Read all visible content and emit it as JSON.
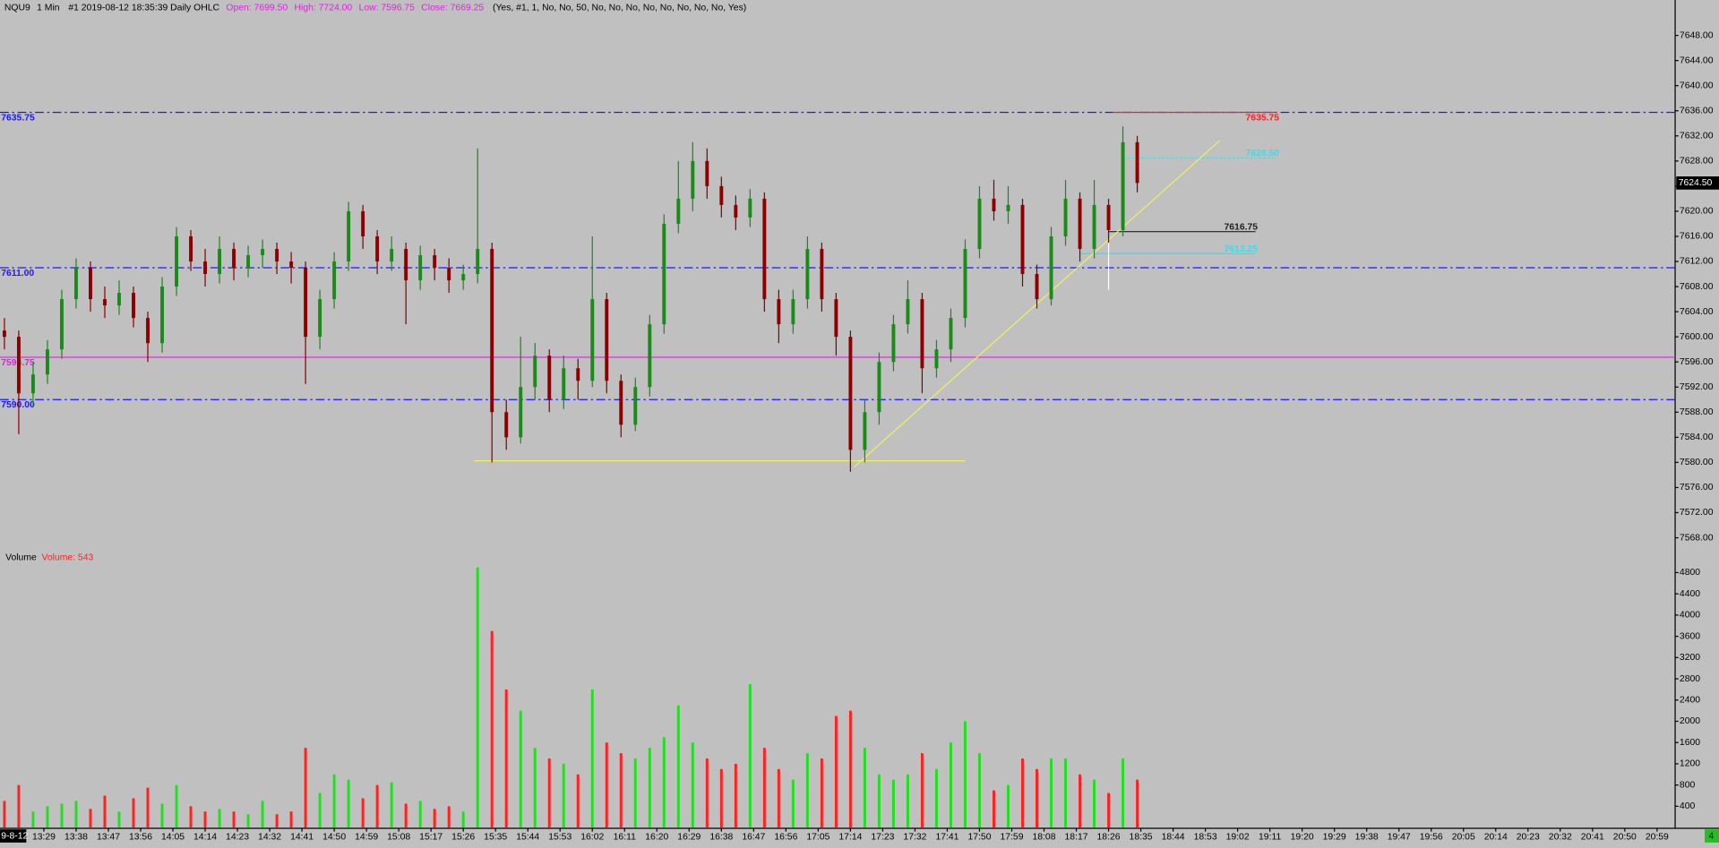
{
  "header": {
    "symbol": "NQU9",
    "interval": "1 Min",
    "info": "#1 2019-08-12 18:35:39 Daily OHLC",
    "ohlc": [
      "Open: 7699.50",
      "High: 7724.00",
      "Low: 7596.75",
      "Close: 7669.25"
    ],
    "params": "(Yes, #1, 1, No, No, 50, No, No, No, No, No, No, No, No, Yes)",
    "date_label": "9-8-12",
    "status": "4"
  },
  "chart_data": [
    {
      "type": "candlestick",
      "x": [
        "13:18",
        "13:22",
        "13:26",
        "13:30",
        "13:34",
        "13:38",
        "13:42",
        "13:46",
        "13:50",
        "13:54",
        "13:58",
        "14:02",
        "14:06",
        "14:10",
        "14:14",
        "14:18",
        "14:22",
        "14:26",
        "14:30",
        "14:34",
        "14:38",
        "14:42",
        "14:46",
        "14:50",
        "14:54",
        "14:58",
        "15:02",
        "15:06",
        "15:10",
        "15:14",
        "15:18",
        "15:22",
        "15:26",
        "15:30",
        "15:34",
        "15:38",
        "15:42",
        "15:46",
        "15:50",
        "15:54",
        "15:58",
        "16:02",
        "16:06",
        "16:10",
        "16:14",
        "16:18",
        "16:22",
        "16:26",
        "16:30",
        "16:34",
        "16:38",
        "16:42",
        "16:46",
        "16:50",
        "16:54",
        "16:58",
        "17:02",
        "17:06",
        "17:10",
        "17:14",
        "17:18",
        "17:22",
        "17:26",
        "17:30",
        "17:34",
        "17:38",
        "17:42",
        "17:46",
        "17:50",
        "17:54",
        "17:58",
        "18:02",
        "18:06",
        "18:10",
        "18:14",
        "18:18",
        "18:22",
        "18:26",
        "18:30",
        "18:34"
      ],
      "open": [
        7601,
        7600,
        7591,
        7594,
        7598,
        7606,
        7611,
        7606,
        7605,
        7607,
        7603,
        7599,
        7608,
        7616,
        7612,
        7610,
        7614,
        7611,
        7613,
        7614,
        7612,
        7611,
        7600,
        7606,
        7612,
        7620,
        7616,
        7612,
        7614,
        7609,
        7613,
        7611,
        7609,
        7610,
        7614,
        7588,
        7584,
        7592,
        7597,
        7590,
        7595,
        7593,
        7606,
        7593,
        7586,
        7592,
        7602,
        7618,
        7622,
        7628,
        7624,
        7621,
        7619,
        7622,
        7606,
        7602,
        7606,
        7614,
        7606,
        7600,
        7582,
        7588,
        7596,
        7602,
        7606,
        7595,
        7598,
        7603,
        7614,
        7622,
        7620,
        7621,
        7610,
        7606,
        7616,
        7622,
        7614,
        7621,
        7617,
        7631
      ],
      "high": [
        7603,
        7601,
        7596,
        7599.5,
        7607.5,
        7612.5,
        7612,
        7608,
        7609,
        7608,
        7604,
        7609.5,
        7617.5,
        7617,
        7614,
        7616,
        7615,
        7614.5,
        7615.5,
        7615,
        7613.5,
        7612,
        7607.5,
        7613.5,
        7621.5,
        7621,
        7617,
        7616,
        7615,
        7614.5,
        7614,
        7612.5,
        7611.5,
        7630,
        7615,
        7590,
        7600,
        7599,
        7598,
        7597,
        7596.5,
        7616,
        7607,
        7594,
        7593.5,
        7603.5,
        7619.5,
        7628,
        7631,
        7630,
        7625.5,
        7622.5,
        7623.5,
        7623,
        7607.5,
        7607.5,
        7616,
        7615,
        7607,
        7601,
        7590,
        7597.5,
        7603.5,
        7609,
        7607,
        7599.5,
        7604.5,
        7615.5,
        7624,
        7625,
        7624,
        7622,
        7611.5,
        7617.5,
        7625,
        7623,
        7625,
        7622,
        7633.5,
        7632
      ],
      "low": [
        7598,
        7584.5,
        7589,
        7592.5,
        7596.5,
        7604.5,
        7604,
        7603,
        7603.5,
        7601.5,
        7596,
        7597.5,
        7606.5,
        7610.5,
        7608,
        7608.5,
        7609,
        7609.5,
        7611,
        7610,
        7608.5,
        7592.5,
        7598,
        7604.5,
        7610.5,
        7614,
        7610,
        7610.5,
        7602,
        7607.5,
        7609,
        7607,
        7607.5,
        7608.5,
        7580,
        7582,
        7583,
        7590,
        7588,
        7588.5,
        7590,
        7592,
        7591,
        7584,
        7585,
        7590.5,
        7600.5,
        7616.5,
        7620,
        7622,
        7619,
        7617,
        7617.5,
        7604,
        7599,
        7600.5,
        7604.5,
        7604,
        7597,
        7578.5,
        7580,
        7586,
        7594.5,
        7600.5,
        7591,
        7593.5,
        7596,
        7601.5,
        7612.5,
        7618.5,
        7618,
        7608,
        7604.5,
        7605,
        7614.5,
        7612,
        7612.5,
        7615,
        7616,
        7623
      ],
      "close": [
        7600,
        7591,
        7594,
        7598,
        7606,
        7611,
        7606,
        7605,
        7607,
        7603,
        7599,
        7608,
        7616,
        7612,
        7610,
        7614,
        7611,
        7613,
        7614,
        7612,
        7611,
        7600,
        7606,
        7612,
        7620,
        7616,
        7612,
        7614,
        7609,
        7613,
        7611,
        7609,
        7610,
        7614,
        7588,
        7584,
        7592,
        7597,
        7590,
        7595,
        7593,
        7606,
        7593,
        7586,
        7592,
        7602,
        7618,
        7622,
        7628,
        7624,
        7621,
        7619,
        7622,
        7606,
        7602,
        7606,
        7614,
        7606,
        7600,
        7582,
        7588,
        7596,
        7602,
        7606,
        7595,
        7598,
        7603,
        7614,
        7622,
        7620,
        7621,
        7610,
        7606,
        7616,
        7622,
        7614,
        7621,
        7617,
        7631,
        7624.5
      ],
      "colors": {
        "up": "#1a8a1a",
        "down": "#8b0000"
      },
      "ylim": [
        7566.4,
        7651.2
      ],
      "yticks": [
        {
          "value": 7568,
          "label": "7568.00"
        },
        {
          "value": 7572,
          "label": "7572.00"
        },
        {
          "value": 7576,
          "label": "7576.00"
        },
        {
          "value": 7580,
          "label": "7580.00"
        },
        {
          "value": 7584,
          "label": "7584.00"
        },
        {
          "value": 7588,
          "label": "7588.00"
        },
        {
          "value": 7592,
          "label": "7592.00"
        },
        {
          "value": 7596,
          "label": "7596.00"
        },
        {
          "value": 7600,
          "label": "7600.00"
        },
        {
          "value": 7604,
          "label": "7604.00"
        },
        {
          "value": 7608,
          "label": "7608.00"
        },
        {
          "value": 7612,
          "label": "7612.00"
        },
        {
          "value": 7616,
          "label": "7616.00"
        },
        {
          "value": 7620,
          "label": "7620.00"
        },
        {
          "value": 7624,
          "label": "7624.00"
        },
        {
          "value": 7628,
          "label": "7628.00"
        },
        {
          "value": 7632,
          "label": "7632.00"
        },
        {
          "value": 7636,
          "label": "7636.00"
        },
        {
          "value": 7640,
          "label": "7640.00"
        },
        {
          "value": 7644,
          "label": "7644.00"
        },
        {
          "value": 7648,
          "label": "7648.00"
        }
      ],
      "xticks": [
        "13:29",
        "13:38",
        "13:47",
        "13:56",
        "14:05",
        "14:14",
        "14:23",
        "14:32",
        "14:41",
        "14:50",
        "14:59",
        "15:08",
        "15:17",
        "15:26",
        "15:35",
        "15:44",
        "15:53",
        "16:02",
        "16:11",
        "16:20",
        "16:29",
        "16:38",
        "16:47",
        "16:56",
        "17:05",
        "17:14",
        "17:23",
        "17:32",
        "17:41",
        "17:50",
        "17:59",
        "18:08",
        "18:17",
        "18:26",
        "18:35",
        "18:44",
        "18:53",
        "19:02",
        "19:11",
        "19:20",
        "19:29",
        "19:38",
        "19:47",
        "19:56",
        "20:05",
        "20:14",
        "20:23",
        "20:32",
        "20:41",
        "20:50",
        "20:59"
      ],
      "last_price": {
        "value": 7624.5,
        "label": "7624.50"
      },
      "levels": [
        {
          "value": 7635.75,
          "label": "7635.75",
          "color": "#1a1aff",
          "style": "dashdot"
        },
        {
          "value": 7611.0,
          "label": "7611.00",
          "color": "#1a1aff",
          "style": "dashdot"
        },
        {
          "value": 7590.0,
          "label": "7590.00",
          "color": "#1a1aff",
          "style": "dashdot"
        },
        {
          "value": 7596.75,
          "label": "7596.75",
          "color": "#e020e0",
          "style": "solid"
        },
        {
          "value": 7635.75,
          "label": "7635.75",
          "color": "#ff2020",
          "style": "solid",
          "start": "18:27",
          "end": "19:13"
        },
        {
          "value": 7628.5,
          "label": "7628.50",
          "color": "#30e0f0",
          "style": "dotted",
          "start": "18:30",
          "end": "19:13"
        },
        {
          "value": 7616.75,
          "label": "7616.75",
          "color": "#202020",
          "style": "solid",
          "start": "18:26",
          "end": "19:07"
        },
        {
          "value": 7613.25,
          "label": "7613.25",
          "color": "#30e0f0",
          "style": "solid",
          "start": "18:18",
          "end": "19:07"
        }
      ],
      "trendlines": [
        {
          "x": [
            "15:29",
            "17:46"
          ],
          "y": [
            7580.25,
            7580.25
          ],
          "color": "#f0f060"
        },
        {
          "x": [
            "17:15",
            "18:57"
          ],
          "y": [
            7579.25,
            7631.25
          ],
          "color": "#f0f060"
        },
        {
          "x": [
            "18:26",
            "18:26"
          ],
          "y": [
            7615.25,
            7607.5
          ],
          "color": "#ffffff"
        }
      ]
    },
    {
      "type": "bar",
      "title": "Volume",
      "legend_text": "Volume: 543",
      "values": [
        500,
        800,
        300,
        400,
        450,
        500,
        350,
        600,
        300,
        550,
        750,
        450,
        800,
        400,
        300,
        350,
        300,
        250,
        500,
        250,
        300,
        1500,
        650,
        1000,
        900,
        550,
        800,
        850,
        450,
        500,
        350,
        400,
        300,
        4900,
        3700,
        2600,
        2200,
        1500,
        1300,
        1200,
        1000,
        2600,
        1600,
        1400,
        1300,
        1500,
        1700,
        2300,
        1600,
        1300,
        1100,
        1200,
        2700,
        1500,
        1100,
        900,
        1400,
        1300,
        2100,
        2200,
        1500,
        1000,
        900,
        1000,
        1400,
        1100,
        1600,
        2000,
        1400,
        700,
        800,
        1300,
        1100,
        1300,
        1300,
        1000,
        900,
        650,
        1300,
        900
      ],
      "colors": {
        "up": "#20e020",
        "down": "#ff2020"
      },
      "ylim": [
        0,
        5040
      ],
      "yticks": [
        400,
        800,
        1200,
        1600,
        2000,
        2400,
        2800,
        3200,
        3600,
        4000,
        4400,
        4800
      ]
    }
  ]
}
